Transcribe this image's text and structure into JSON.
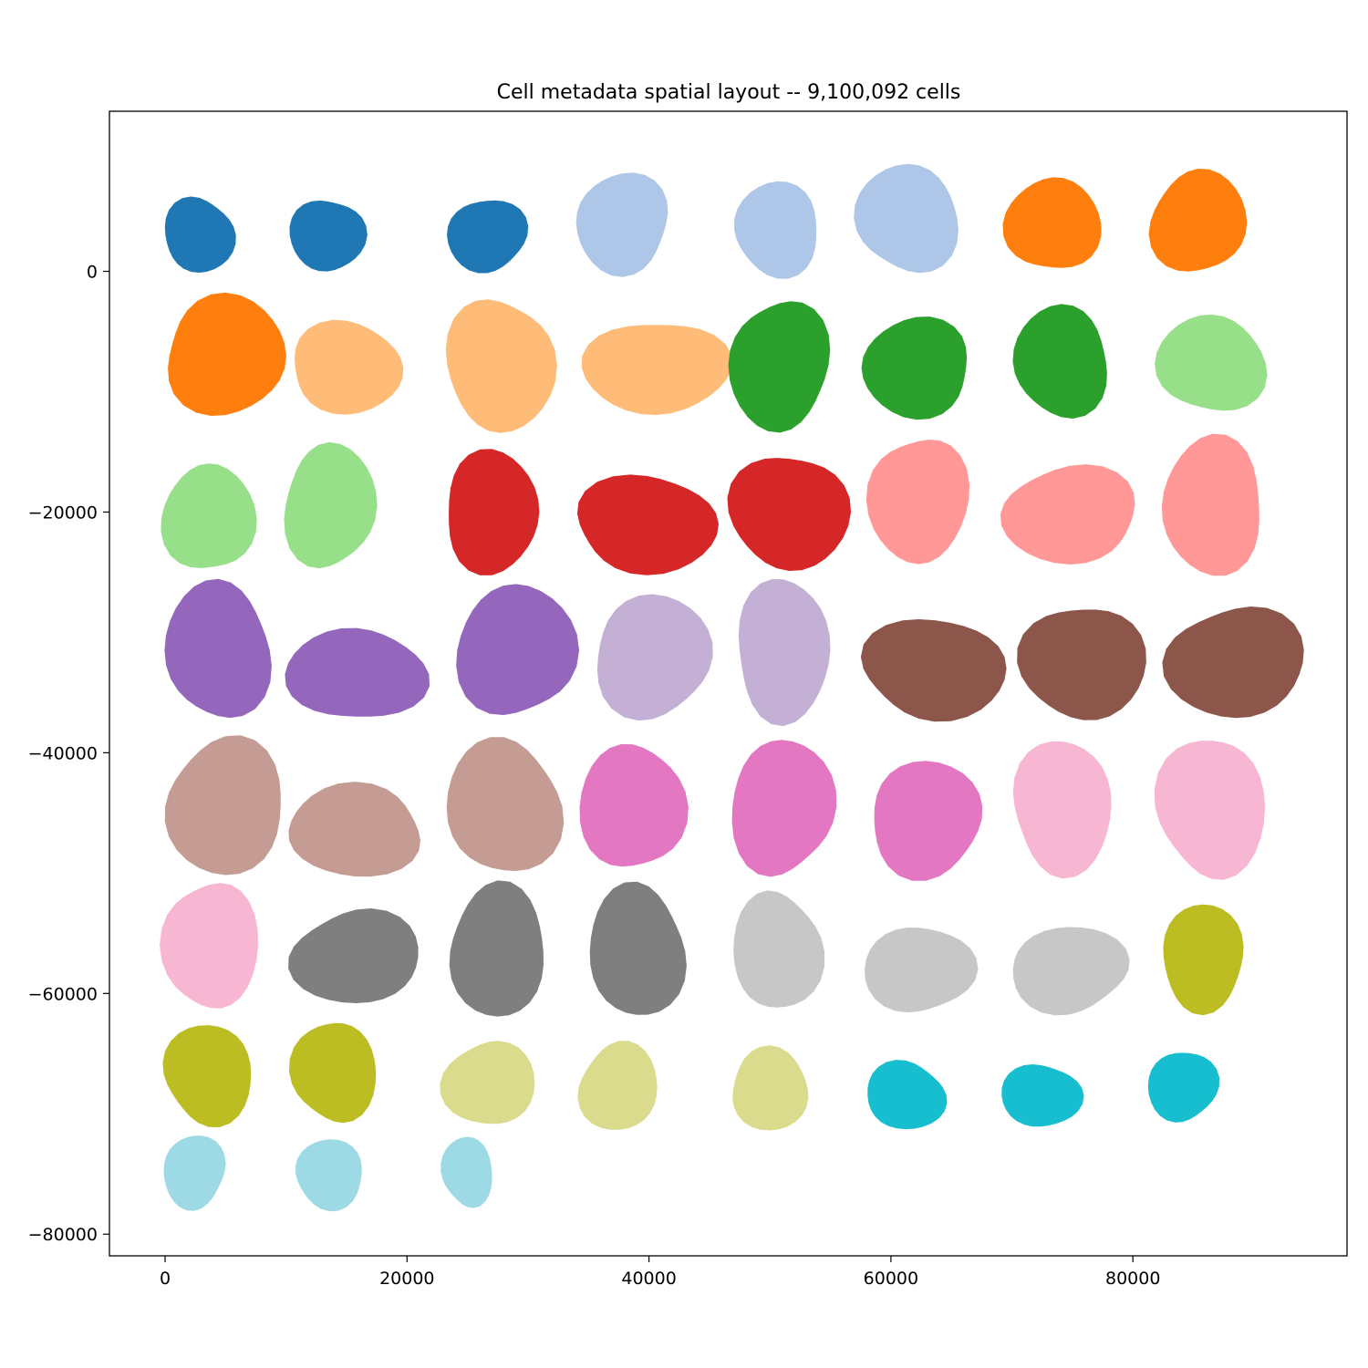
{
  "chart_data": {
    "type": "scatter",
    "title": "Cell metadata spatial layout -- 9,100,092 cells",
    "xlabel": "",
    "ylabel": "",
    "xlim": [
      -4600,
      97700
    ],
    "ylim": [
      -81800,
      13300
    ],
    "grid": false,
    "legend": "none",
    "x_ticks": [
      {
        "value": 0,
        "label": "0"
      },
      {
        "value": 20000,
        "label": "20000"
      },
      {
        "value": 40000,
        "label": "40000"
      },
      {
        "value": 60000,
        "label": "60000"
      },
      {
        "value": 80000,
        "label": "80000"
      }
    ],
    "y_ticks": [
      {
        "value": 0,
        "label": "0"
      },
      {
        "value": -20000,
        "label": "−20000"
      },
      {
        "value": -40000,
        "label": "−40000"
      },
      {
        "value": -60000,
        "label": "−60000"
      },
      {
        "value": -80000,
        "label": "−80000"
      }
    ],
    "sections": [
      {
        "cx": 2800,
        "cy": 3000,
        "rx": 2800,
        "ry": 3000,
        "color": "#1f77b4"
      },
      {
        "cx": 13400,
        "cy": 3000,
        "rx": 2900,
        "ry": 3000,
        "color": "#1f77b4"
      },
      {
        "cx": 26600,
        "cy": 3000,
        "rx": 3100,
        "ry": 3000,
        "color": "#1f77b4"
      },
      {
        "cx": 37800,
        "cy": 4000,
        "rx": 3800,
        "ry": 4000,
        "color": "#aec7e8"
      },
      {
        "cx": 50600,
        "cy": 3500,
        "rx": 3500,
        "ry": 3700,
        "color": "#aec7e8"
      },
      {
        "cx": 61400,
        "cy": 4400,
        "rx": 4100,
        "ry": 4400,
        "color": "#aec7e8"
      },
      {
        "cx": 73400,
        "cy": 3900,
        "rx": 3700,
        "ry": 3900,
        "color": "#ff7f0e"
      },
      {
        "cx": 85400,
        "cy": 4100,
        "rx": 3800,
        "ry": 4200,
        "color": "#ff7f0e"
      },
      {
        "cx": 5000,
        "cy": -7000,
        "rx": 5000,
        "ry": 4700,
        "color": "#ff7f0e"
      },
      {
        "cx": 15000,
        "cy": -8000,
        "rx": 4600,
        "ry": 3600,
        "color": "#ffbb78"
      },
      {
        "cx": 27700,
        "cy": -7800,
        "rx": 4300,
        "ry": 5500,
        "color": "#ffbb78"
      },
      {
        "cx": 40600,
        "cy": -8000,
        "rx": 5700,
        "ry": 3900,
        "color": "#ffbb78"
      },
      {
        "cx": 50800,
        "cy": -7800,
        "rx": 4000,
        "ry": 5300,
        "color": "#2ca02c"
      },
      {
        "cx": 62100,
        "cy": -8000,
        "rx": 4500,
        "ry": 3900,
        "color": "#2ca02c"
      },
      {
        "cx": 74100,
        "cy": -7500,
        "rx": 3900,
        "ry": 4400,
        "color": "#2ca02c"
      },
      {
        "cx": 86500,
        "cy": -7700,
        "rx": 4300,
        "ry": 4000,
        "color": "#98df8a"
      },
      {
        "cx": 3600,
        "cy": -20500,
        "rx": 3600,
        "ry": 4500,
        "color": "#98df8a"
      },
      {
        "cx": 13600,
        "cy": -19500,
        "rx": 3700,
        "ry": 5000,
        "color": "#98df8a"
      },
      {
        "cx": 27000,
        "cy": -20000,
        "rx": 3900,
        "ry": 4800,
        "color": "#d62728"
      },
      {
        "cx": 39800,
        "cy": -21000,
        "rx": 5800,
        "ry": 3900,
        "color": "#d62728"
      },
      {
        "cx": 51600,
        "cy": -20000,
        "rx": 4700,
        "ry": 4800,
        "color": "#d62728"
      },
      {
        "cx": 62300,
        "cy": -19000,
        "rx": 3900,
        "ry": 5300,
        "color": "#ff9896"
      },
      {
        "cx": 74800,
        "cy": -20200,
        "rx": 5500,
        "ry": 3900,
        "color": "#ff9896"
      },
      {
        "cx": 86600,
        "cy": -19500,
        "rx": 4200,
        "ry": 5400,
        "color": "#ff9896"
      },
      {
        "cx": 4400,
        "cy": -31500,
        "rx": 4300,
        "ry": 5500,
        "color": "#9467bd"
      },
      {
        "cx": 15800,
        "cy": -33500,
        "rx": 5500,
        "ry": 3800,
        "color": "#9467bd"
      },
      {
        "cx": 29000,
        "cy": -31500,
        "rx": 4700,
        "ry": 5500,
        "color": "#9467bd"
      },
      {
        "cx": 40300,
        "cy": -32000,
        "rx": 4800,
        "ry": 4900,
        "color": "#c5b0d5"
      },
      {
        "cx": 51100,
        "cy": -31500,
        "rx": 3900,
        "ry": 5600,
        "color": "#c5b0d5"
      },
      {
        "cx": 63600,
        "cy": -33000,
        "rx": 5800,
        "ry": 4100,
        "color": "#8c564b"
      },
      {
        "cx": 75900,
        "cy": -32500,
        "rx": 4900,
        "ry": 4800,
        "color": "#8c564b"
      },
      {
        "cx": 88500,
        "cy": -32500,
        "rx": 5500,
        "ry": 4600,
        "color": "#8c564b"
      },
      {
        "cx": 5000,
        "cy": -44500,
        "rx": 4900,
        "ry": 5400,
        "color": "#c49c94"
      },
      {
        "cx": 15700,
        "cy": -46500,
        "rx": 5600,
        "ry": 3600,
        "color": "#c49c94"
      },
      {
        "cx": 28000,
        "cy": -44500,
        "rx": 4600,
        "ry": 5500,
        "color": "#c49c94"
      },
      {
        "cx": 38600,
        "cy": -44500,
        "rx": 4100,
        "ry": 5300,
        "color": "#e377c2"
      },
      {
        "cx": 51000,
        "cy": -44500,
        "rx": 4100,
        "ry": 5600,
        "color": "#e377c2"
      },
      {
        "cx": 62900,
        "cy": -45500,
        "rx": 4600,
        "ry": 4600,
        "color": "#e377c2"
      },
      {
        "cx": 74200,
        "cy": -44500,
        "rx": 4100,
        "ry": 5300,
        "color": "#f7b6d2"
      },
      {
        "cx": 86500,
        "cy": -44500,
        "rx": 4300,
        "ry": 5800,
        "color": "#f7b6d2"
      },
      {
        "cx": 3800,
        "cy": -56000,
        "rx": 3700,
        "ry": 5400,
        "color": "#f7b6d2"
      },
      {
        "cx": 15800,
        "cy": -57000,
        "rx": 5200,
        "ry": 3800,
        "color": "#7f7f7f"
      },
      {
        "cx": 27500,
        "cy": -56500,
        "rx": 4000,
        "ry": 5200,
        "color": "#7f7f7f"
      },
      {
        "cx": 39000,
        "cy": -56500,
        "rx": 4000,
        "ry": 5200,
        "color": "#7f7f7f"
      },
      {
        "cx": 50600,
        "cy": -56500,
        "rx": 3500,
        "ry": 4900,
        "color": "#c7c7c7"
      },
      {
        "cx": 62300,
        "cy": -58000,
        "rx": 4300,
        "ry": 3600,
        "color": "#c7c7c7"
      },
      {
        "cx": 74700,
        "cy": -58000,
        "rx": 4700,
        "ry": 3500,
        "color": "#c7c7c7"
      },
      {
        "cx": 85800,
        "cy": -57000,
        "rx": 3400,
        "ry": 4200,
        "color": "#bcbd22"
      },
      {
        "cx": 3600,
        "cy": -66700,
        "rx": 3600,
        "ry": 4000,
        "color": "#bcbd22"
      },
      {
        "cx": 14000,
        "cy": -66500,
        "rx": 3300,
        "ry": 4200,
        "color": "#bcbd22"
      },
      {
        "cx": 26800,
        "cy": -67500,
        "rx": 3600,
        "ry": 3500,
        "color": "#dbdb8d"
      },
      {
        "cx": 37500,
        "cy": -67800,
        "rx": 3200,
        "ry": 3500,
        "color": "#dbdb8d"
      },
      {
        "cx": 50000,
        "cy": -68000,
        "rx": 3200,
        "ry": 3200,
        "color": "#dbdb8d"
      },
      {
        "cx": 61200,
        "cy": -68500,
        "rx": 3200,
        "ry": 2700,
        "color": "#17becf"
      },
      {
        "cx": 72400,
        "cy": -68500,
        "rx": 3100,
        "ry": 2600,
        "color": "#17becf"
      },
      {
        "cx": 84100,
        "cy": -67700,
        "rx": 2700,
        "ry": 2900,
        "color": "#17becf"
      },
      {
        "cx": 2400,
        "cy": -74800,
        "rx": 2500,
        "ry": 2900,
        "color": "#9edae5"
      },
      {
        "cx": 13600,
        "cy": -75000,
        "rx": 2800,
        "ry": 2700,
        "color": "#9edae5"
      },
      {
        "cx": 25000,
        "cy": -74800,
        "rx": 2000,
        "ry": 2800,
        "color": "#9edae5"
      }
    ]
  }
}
